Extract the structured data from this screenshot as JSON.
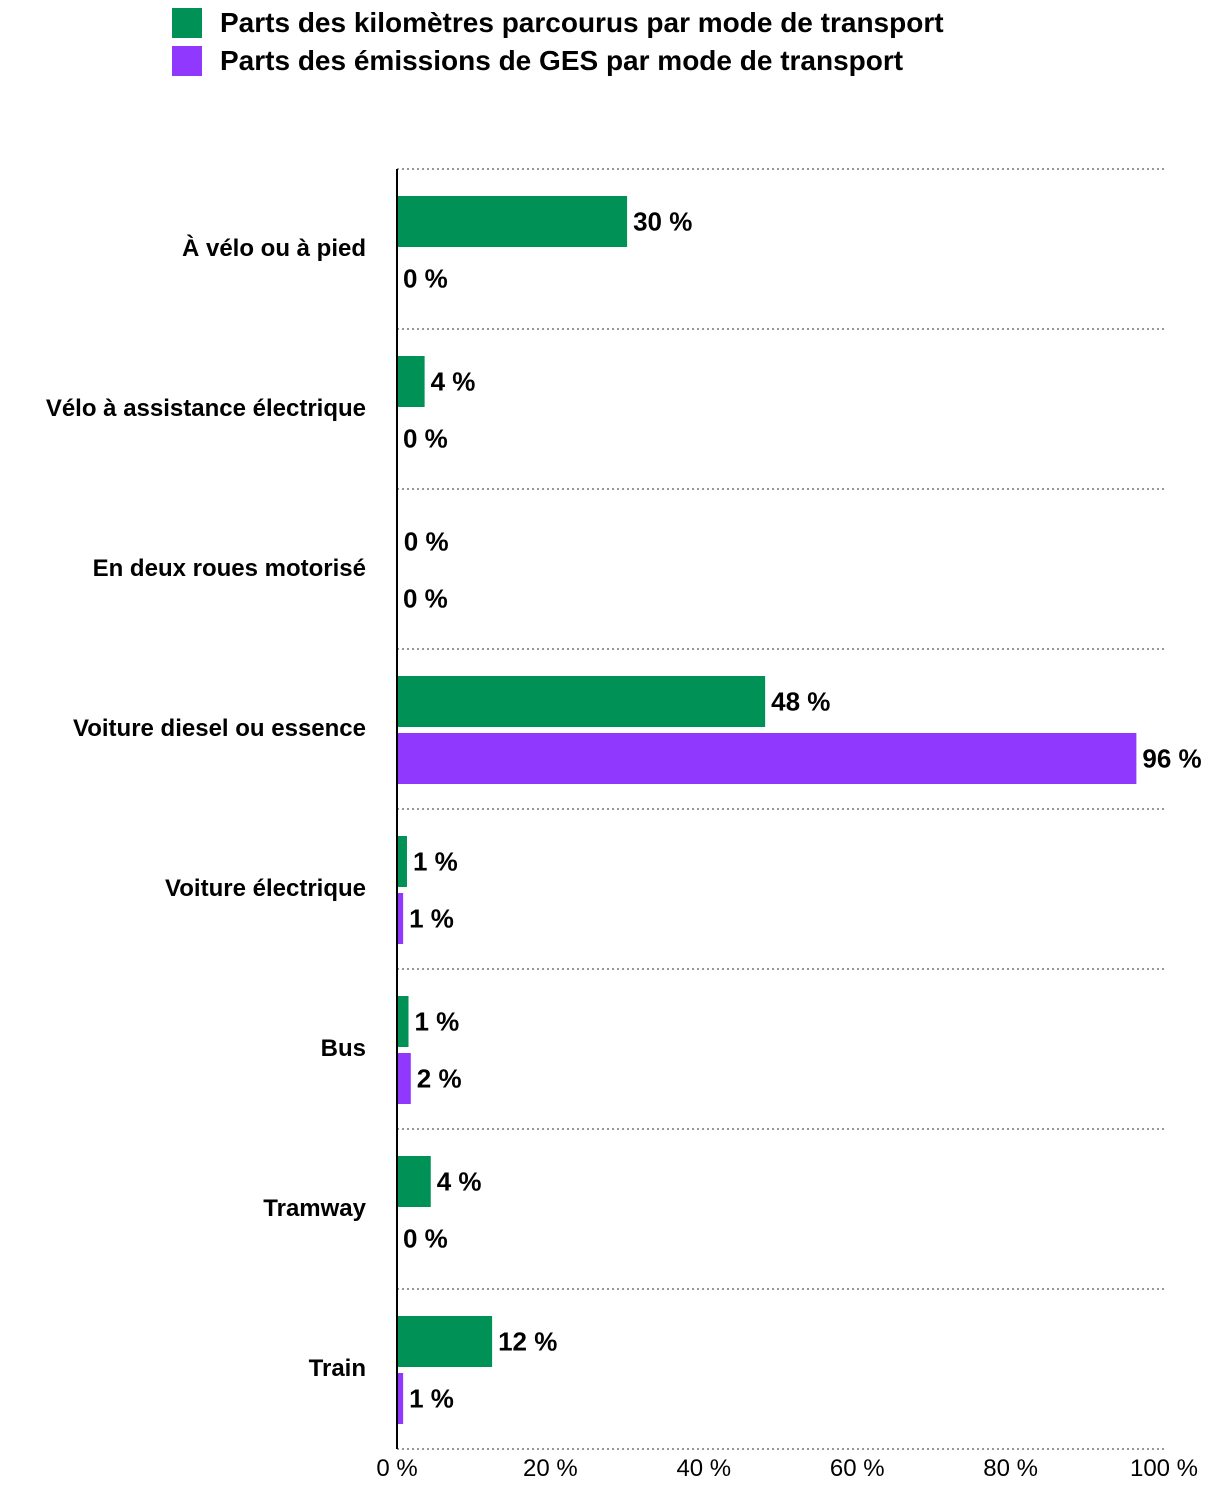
{
  "legend": [
    {
      "label": "Parts des kilomètres parcourus par mode de transport",
      "color": "#009156"
    },
    {
      "label": "Parts des émissions de GES par mode de transport",
      "color": "#9138FF"
    }
  ],
  "chart_data": {
    "type": "bar",
    "orientation": "horizontal",
    "categories": [
      "À vélo ou à pied",
      "Vélo à assistance électrique",
      "En deux roues motorisé",
      "Voiture diesel ou essence",
      "Voiture électrique",
      "Bus",
      "Tramway",
      "Train"
    ],
    "series": [
      {
        "name": "Parts des kilomètres parcourus par mode de transport",
        "color": "#009156",
        "values": [
          30,
          3.6,
          0.1,
          48,
          1.3,
          1.5,
          4.4,
          12.4
        ],
        "labels": [
          "30 %",
          "4 %",
          "0 %",
          "48 %",
          "1 %",
          "1 %",
          "4 %",
          "12 %"
        ]
      },
      {
        "name": "Parts des émissions de GES par mode de transport",
        "color": "#9138FF",
        "values": [
          0,
          0,
          0,
          96.4,
          0.8,
          1.8,
          0,
          0.8
        ],
        "labels": [
          "0 %",
          "0 %",
          "0 %",
          "96 %",
          "1 %",
          "2 %",
          "0 %",
          "1 %"
        ]
      }
    ],
    "xlim": [
      0,
      100
    ],
    "x_ticks": [
      "0 %",
      "20 %",
      "40 %",
      "60 %",
      "80 %",
      "100 %"
    ],
    "grid": "dotted horizontal separators",
    "legend_position": "top"
  }
}
